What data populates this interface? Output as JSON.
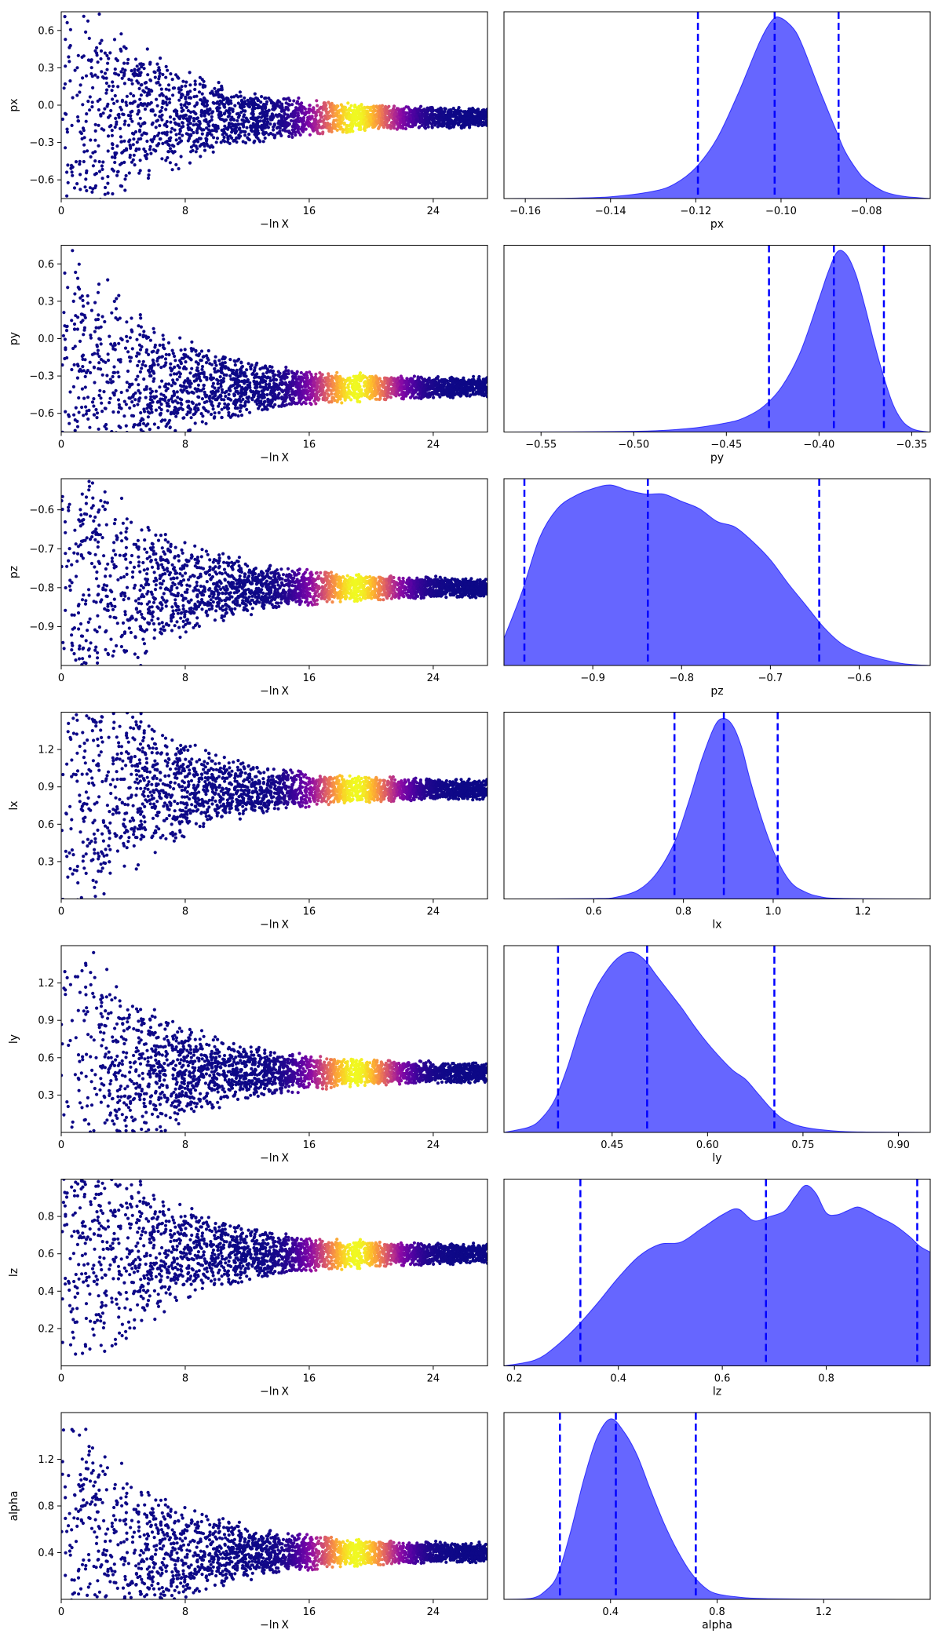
{
  "figure": {
    "trace_xlabel": "−ln X",
    "colors": {
      "posterior_fill": "#0000ff",
      "posterior_fill_opacity": 0.6,
      "quantile_line": "#0000ff",
      "trace_colormap": "plasma"
    }
  },
  "chart_data": [
    {
      "type": "scatter",
      "role": "trace",
      "parameter": "px",
      "ylabel": "px",
      "xlabel": "−ln X",
      "xlim": [
        0,
        27.5
      ],
      "ylim": [
        -0.75,
        0.75
      ],
      "xticks": [
        "0",
        "8",
        "16",
        "24"
      ],
      "yticks": [
        "0.6",
        "0.3",
        "0.0",
        "−0.3",
        "−0.6"
      ],
      "center": -0.1,
      "peak_x": 19
    },
    {
      "type": "area",
      "role": "posterior",
      "parameter": "px",
      "xlabel": "px",
      "xlim": [
        -0.165,
        -0.065
      ],
      "xticks": [
        "−0.16",
        "−0.14",
        "−0.12",
        "−0.10",
        "−0.08"
      ],
      "quantiles": [
        -0.1195,
        -0.1015,
        -0.0865
      ],
      "density_x": [
        -0.165,
        -0.15,
        -0.14,
        -0.13,
        -0.125,
        -0.12,
        -0.115,
        -0.11,
        -0.105,
        -0.102,
        -0.1,
        -0.097,
        -0.095,
        -0.092,
        -0.09,
        -0.087,
        -0.085,
        -0.082,
        -0.08,
        -0.076,
        -0.072,
        -0.068,
        -0.065
      ],
      "density_y": [
        0,
        0.002,
        0.01,
        0.04,
        0.08,
        0.17,
        0.33,
        0.58,
        0.86,
        0.98,
        0.99,
        0.93,
        0.84,
        0.66,
        0.54,
        0.37,
        0.26,
        0.15,
        0.1,
        0.04,
        0.015,
        0.005,
        0
      ]
    },
    {
      "type": "scatter",
      "role": "trace",
      "parameter": "py",
      "ylabel": "py",
      "xlabel": "−ln X",
      "xlim": [
        0,
        27.5
      ],
      "ylim": [
        -0.75,
        0.75
      ],
      "xticks": [
        "0",
        "8",
        "16",
        "24"
      ],
      "yticks": [
        "0.6",
        "0.3",
        "0.0",
        "−0.3",
        "−0.6"
      ],
      "center": -0.39,
      "peak_x": 19
    },
    {
      "type": "area",
      "role": "posterior",
      "parameter": "py",
      "xlabel": "py",
      "xlim": [
        -0.57,
        -0.34
      ],
      "xticks": [
        "−0.55",
        "−0.50",
        "−0.45",
        "−0.40",
        "−0.35"
      ],
      "quantiles": [
        -0.427,
        -0.392,
        -0.365
      ],
      "density_x": [
        -0.57,
        -0.5,
        -0.47,
        -0.45,
        -0.44,
        -0.43,
        -0.42,
        -0.41,
        -0.4,
        -0.395,
        -0.39,
        -0.385,
        -0.38,
        -0.375,
        -0.37,
        -0.365,
        -0.36,
        -0.355,
        -0.35,
        -0.345,
        -0.34
      ],
      "density_y": [
        0,
        0.004,
        0.02,
        0.05,
        0.08,
        0.14,
        0.25,
        0.44,
        0.73,
        0.88,
        0.99,
        0.97,
        0.86,
        0.68,
        0.48,
        0.3,
        0.15,
        0.06,
        0.02,
        0.005,
        0
      ]
    },
    {
      "type": "scatter",
      "role": "trace",
      "parameter": "pz",
      "ylabel": "pz",
      "xlabel": "−ln X",
      "xlim": [
        0,
        27.5
      ],
      "ylim": [
        -1.0,
        -0.52
      ],
      "xticks": [
        "0",
        "8",
        "16",
        "24"
      ],
      "yticks": [
        "−0.6",
        "−0.7",
        "−0.8",
        "−0.9"
      ],
      "center": -0.8,
      "peak_x": 19
    },
    {
      "type": "area",
      "role": "posterior",
      "parameter": "pz",
      "xlabel": "pz",
      "xlim": [
        -1.0,
        -0.52
      ],
      "xticks": [
        "−0.9",
        "−0.8",
        "−0.7",
        "−0.6"
      ],
      "quantiles": [
        -0.977,
        -0.838,
        -0.645
      ],
      "density_x": [
        -1.0,
        -0.98,
        -0.96,
        -0.94,
        -0.92,
        -0.9,
        -0.88,
        -0.86,
        -0.84,
        -0.82,
        -0.8,
        -0.78,
        -0.76,
        -0.74,
        -0.72,
        -0.7,
        -0.68,
        -0.66,
        -0.64,
        -0.62,
        -0.6,
        -0.58,
        -0.55,
        -0.52
      ],
      "density_y": [
        0.15,
        0.4,
        0.7,
        0.86,
        0.93,
        0.97,
        0.99,
        0.96,
        0.94,
        0.94,
        0.9,
        0.86,
        0.79,
        0.76,
        0.68,
        0.58,
        0.45,
        0.33,
        0.21,
        0.12,
        0.07,
        0.04,
        0.01,
        0
      ]
    },
    {
      "type": "scatter",
      "role": "trace",
      "parameter": "lx",
      "ylabel": "lx",
      "xlabel": "−ln X",
      "xlim": [
        0,
        27.5
      ],
      "ylim": [
        0,
        1.5
      ],
      "xticks": [
        "0",
        "8",
        "16",
        "24"
      ],
      "yticks": [
        "1.2",
        "0.9",
        "0.6",
        "0.3"
      ],
      "center": 0.88,
      "peak_x": 19
    },
    {
      "type": "area",
      "role": "posterior",
      "parameter": "lx",
      "xlabel": "lx",
      "xlim": [
        0.4,
        1.35
      ],
      "xticks": [
        "0.6",
        "0.8",
        "1.0",
        "1.2"
      ],
      "quantiles": [
        0.78,
        0.89,
        1.01
      ],
      "density_x": [
        0.4,
        0.6,
        0.65,
        0.7,
        0.74,
        0.78,
        0.81,
        0.84,
        0.87,
        0.89,
        0.91,
        0.93,
        0.95,
        0.98,
        1.01,
        1.04,
        1.07,
        1.1,
        1.15,
        1.35
      ],
      "density_y": [
        0,
        0.002,
        0.01,
        0.05,
        0.14,
        0.31,
        0.52,
        0.76,
        0.95,
        0.99,
        0.95,
        0.83,
        0.64,
        0.4,
        0.21,
        0.09,
        0.04,
        0.015,
        0.003,
        0
      ]
    },
    {
      "type": "scatter",
      "role": "trace",
      "parameter": "ly",
      "ylabel": "ly",
      "xlabel": "−ln X",
      "xlim": [
        0,
        27.5
      ],
      "ylim": [
        0,
        1.5
      ],
      "xticks": [
        "0",
        "8",
        "16",
        "24"
      ],
      "yticks": [
        "1.2",
        "0.9",
        "0.6",
        "0.3"
      ],
      "center": 0.48,
      "peak_x": 19
    },
    {
      "type": "area",
      "role": "posterior",
      "parameter": "ly",
      "xlabel": "ly",
      "xlim": [
        0.28,
        0.95
      ],
      "xticks": [
        "0.45",
        "0.60",
        "0.75",
        "0.90"
      ],
      "quantiles": [
        0.365,
        0.505,
        0.705
      ],
      "density_x": [
        0.28,
        0.32,
        0.34,
        0.36,
        0.38,
        0.4,
        0.42,
        0.44,
        0.46,
        0.48,
        0.5,
        0.52,
        0.54,
        0.56,
        0.58,
        0.6,
        0.62,
        0.64,
        0.66,
        0.68,
        0.7,
        0.72,
        0.75,
        0.8,
        0.85,
        0.95
      ],
      "density_y": [
        0,
        0.03,
        0.08,
        0.18,
        0.36,
        0.58,
        0.76,
        0.88,
        0.96,
        0.99,
        0.95,
        0.86,
        0.77,
        0.68,
        0.58,
        0.49,
        0.41,
        0.34,
        0.29,
        0.21,
        0.13,
        0.07,
        0.03,
        0.008,
        0.002,
        0
      ]
    },
    {
      "type": "scatter",
      "role": "trace",
      "parameter": "lz",
      "ylabel": "lz",
      "xlabel": "−ln X",
      "xlim": [
        0,
        27.5
      ],
      "ylim": [
        0,
        1.0
      ],
      "xticks": [
        "0",
        "8",
        "16",
        "24"
      ],
      "yticks": [
        "0.8",
        "0.6",
        "0.4",
        "0.2"
      ],
      "center": 0.6,
      "peak_x": 19
    },
    {
      "type": "area",
      "role": "posterior",
      "parameter": "lz",
      "xlabel": "lz",
      "xlim": [
        0.18,
        1.0
      ],
      "xticks": [
        "0.2",
        "0.4",
        "0.6",
        "0.8"
      ],
      "quantiles": [
        0.327,
        0.684,
        0.975
      ],
      "density_x": [
        0.18,
        0.24,
        0.28,
        0.32,
        0.36,
        0.4,
        0.44,
        0.48,
        0.52,
        0.56,
        0.6,
        0.63,
        0.66,
        0.69,
        0.72,
        0.74,
        0.76,
        0.78,
        0.8,
        0.82,
        0.84,
        0.86,
        0.88,
        0.9,
        0.93,
        0.96,
        0.98,
        1.0
      ],
      "density_y": [
        0,
        0.03,
        0.1,
        0.2,
        0.32,
        0.45,
        0.56,
        0.62,
        0.63,
        0.7,
        0.77,
        0.8,
        0.74,
        0.76,
        0.79,
        0.86,
        0.92,
        0.88,
        0.78,
        0.77,
        0.79,
        0.81,
        0.79,
        0.76,
        0.72,
        0.66,
        0.61,
        0.58
      ]
    },
    {
      "type": "scatter",
      "role": "trace",
      "parameter": "alpha",
      "ylabel": "alpha",
      "xlabel": "−ln X",
      "xlim": [
        0,
        27.5
      ],
      "ylim": [
        0,
        1.6
      ],
      "xticks": [
        "0",
        "8",
        "16",
        "24"
      ],
      "yticks": [
        "1.2",
        "0.8",
        "0.4"
      ],
      "center": 0.4,
      "peak_x": 19
    },
    {
      "type": "area",
      "role": "posterior",
      "parameter": "alpha",
      "xlabel": "alpha",
      "xlim": [
        0.0,
        1.6
      ],
      "xticks": [
        "0.4",
        "0.8",
        "1.2"
      ],
      "quantiles": [
        0.21,
        0.42,
        0.72
      ],
      "density_x": [
        0.0,
        0.1,
        0.15,
        0.2,
        0.25,
        0.3,
        0.35,
        0.4,
        0.45,
        0.5,
        0.55,
        0.6,
        0.65,
        0.7,
        0.75,
        0.8,
        0.9,
        1.0,
        1.2,
        1.6
      ],
      "density_y": [
        0,
        0.005,
        0.04,
        0.13,
        0.37,
        0.66,
        0.89,
        0.99,
        0.92,
        0.79,
        0.6,
        0.42,
        0.27,
        0.15,
        0.07,
        0.03,
        0.01,
        0.004,
        0.001,
        0
      ]
    }
  ]
}
